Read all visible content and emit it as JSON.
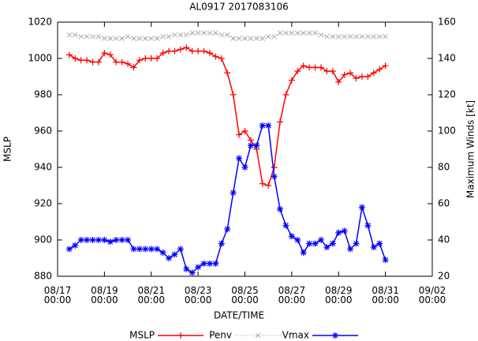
{
  "chart_data": {
    "type": "line",
    "title": "AL0917 2017083106",
    "x_label": "DATE/TIME",
    "y_label": "MSLP",
    "y2_label": "Maximum Winds [kt]",
    "x": [
      "08/17 12:00",
      "08/17 18:00",
      "08/18 00:00",
      "08/18 06:00",
      "08/18 12:00",
      "08/18 18:00",
      "08/19 00:00",
      "08/19 06:00",
      "08/19 12:00",
      "08/19 18:00",
      "08/20 00:00",
      "08/20 06:00",
      "08/20 12:00",
      "08/20 18:00",
      "08/21 00:00",
      "08/21 06:00",
      "08/21 12:00",
      "08/21 18:00",
      "08/22 00:00",
      "08/22 06:00",
      "08/22 12:00",
      "08/22 18:00",
      "08/23 00:00",
      "08/23 06:00",
      "08/23 12:00",
      "08/23 18:00",
      "08/24 00:00",
      "08/24 06:00",
      "08/24 12:00",
      "08/24 18:00",
      "08/25 00:00",
      "08/25 06:00",
      "08/25 12:00",
      "08/25 18:00",
      "08/26 00:00",
      "08/26 06:00",
      "08/26 12:00",
      "08/26 18:00",
      "08/27 00:00",
      "08/27 06:00",
      "08/27 12:00",
      "08/27 18:00",
      "08/28 00:00",
      "08/28 06:00",
      "08/28 12:00",
      "08/28 18:00",
      "08/29 00:00",
      "08/29 06:00",
      "08/29 12:00",
      "08/29 18:00",
      "08/30 00:00",
      "08/30 06:00",
      "08/30 12:00",
      "08/30 18:00",
      "08/31 00:00"
    ],
    "series": [
      {
        "name": "MSLP",
        "color": "#ff0000",
        "marker": "plus",
        "line_style": "solid",
        "values": [
          1002,
          1000,
          999,
          999,
          998,
          998,
          1003,
          1002,
          998,
          998,
          997,
          995,
          999,
          1000,
          1000,
          1000,
          1003,
          1004,
          1004,
          1005,
          1006,
          1004,
          1004,
          1004,
          1003,
          1001,
          1000,
          992,
          980,
          958,
          960,
          955,
          950,
          931,
          930,
          940,
          965,
          980,
          988,
          993,
          996,
          995,
          995,
          995,
          993,
          993,
          987,
          991,
          992,
          989,
          990,
          990,
          992,
          994,
          996
        ]
      },
      {
        "name": "Penv",
        "color": "#a0a0a0",
        "marker": "cross",
        "line_style": "dotted",
        "values": [
          1013,
          1013,
          1012,
          1012,
          1012,
          1012,
          1011,
          1011,
          1011,
          1011,
          1012,
          1011,
          1011,
          1011,
          1011,
          1011,
          1012,
          1012,
          1013,
          1013,
          1013,
          1014,
          1014,
          1014,
          1014,
          1014,
          1013,
          1013,
          1011,
          1011,
          1011,
          1011,
          1011,
          1011,
          1012,
          1012,
          1014,
          1014,
          1014,
          1014,
          1014,
          1014,
          1014,
          1013,
          1012,
          1012,
          1012,
          1012,
          1012,
          1012,
          1012,
          1012,
          1012,
          1012,
          1012
        ]
      },
      {
        "name": "Vmax",
        "color": "#0000ff",
        "marker": "star",
        "line_style": "solid",
        "axis": "y2",
        "values": [
          35,
          37,
          40,
          40,
          40,
          40,
          40,
          39,
          40,
          40,
          40,
          35,
          35,
          35,
          35,
          35,
          33,
          30,
          32,
          35,
          24,
          22,
          25,
          27,
          27,
          27,
          38,
          46,
          66,
          85,
          80,
          92,
          92,
          103,
          103,
          75,
          57,
          48,
          42,
          40,
          33,
          38,
          38,
          40,
          36,
          38,
          44,
          45,
          35,
          38,
          58,
          48,
          36,
          38,
          29
        ]
      }
    ],
    "xlim": [
      "08/17 00:00",
      "09/02 00:00"
    ],
    "xticks": [
      "08/17 00:00",
      "08/19 00:00",
      "08/21 00:00",
      "08/23 00:00",
      "08/25 00:00",
      "08/27 00:00",
      "08/29 00:00",
      "08/31 00:00",
      "09/02 00:00"
    ],
    "ylim": [
      880,
      1020
    ],
    "yticks": [
      880,
      900,
      920,
      940,
      960,
      980,
      1000,
      1020
    ],
    "y2lim": [
      20,
      160
    ],
    "y2ticks": [
      20,
      40,
      60,
      80,
      100,
      120,
      140,
      160
    ],
    "grid": false,
    "legend": "bottom"
  }
}
